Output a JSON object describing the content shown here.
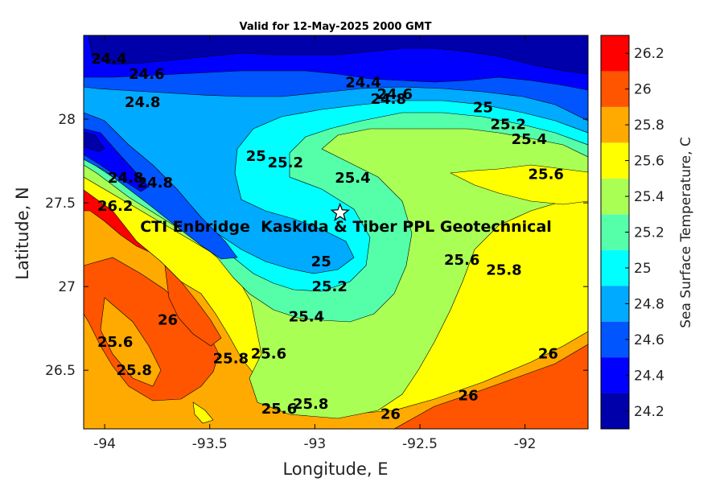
{
  "chart_data": {
    "type": "heatmap",
    "title": "Valid for 12-May-2025 2000 GMT",
    "xlabel": "Longitude, E",
    "ylabel": "Latitude, N",
    "xlim": [
      -94.1,
      -91.7
    ],
    "ylim": [
      26.15,
      28.5
    ],
    "x_ticks": [
      -94,
      -93.5,
      -93,
      -92.5,
      -92
    ],
    "y_ticks": [
      26.5,
      27,
      27.5,
      28
    ],
    "annotation": "CTI Enbridge  Kaskida & Tiber PPL Geotechnical",
    "marker": {
      "symbol": "star",
      "lon": -92.88,
      "lat": 27.44
    },
    "colorbar": {
      "label": "Sea Surface Temperature, C",
      "ticks": [
        24.2,
        24.4,
        24.6,
        24.8,
        25,
        25.2,
        25.4,
        25.6,
        25.8,
        26,
        26.2
      ],
      "levels": [
        24.2,
        24.4,
        24.6,
        24.8,
        25.0,
        25.2,
        25.4,
        25.6,
        25.8,
        26.0,
        26.2
      ],
      "colors": [
        "#0000aa",
        "#0000ff",
        "#0055ff",
        "#00aaff",
        "#00ffff",
        "#55ffaa",
        "#aaff55",
        "#ffff00",
        "#ffaa00",
        "#ff5500",
        "#ff0000"
      ]
    },
    "contour_labels": [
      {
        "text": "24.4",
        "lon": -93.98,
        "lat": 28.36
      },
      {
        "text": "24.6",
        "lon": -93.8,
        "lat": 28.27
      },
      {
        "text": "24.8",
        "lon": -93.82,
        "lat": 28.1
      },
      {
        "text": "24.4",
        "lon": -92.77,
        "lat": 28.22
      },
      {
        "text": "24.8",
        "lon": -92.65,
        "lat": 28.12
      },
      {
        "text": "24.6",
        "lon": -92.62,
        "lat": 28.15
      },
      {
        "text": "25",
        "lon": -92.2,
        "lat": 28.07
      },
      {
        "text": "25.2",
        "lon": -92.08,
        "lat": 27.97
      },
      {
        "text": "25.4",
        "lon": -91.98,
        "lat": 27.88
      },
      {
        "text": "25.6",
        "lon": -91.9,
        "lat": 27.67
      },
      {
        "text": "25",
        "lon": -93.28,
        "lat": 27.78
      },
      {
        "text": "25.2",
        "lon": -93.14,
        "lat": 27.74
      },
      {
        "text": "25.4",
        "lon": -92.82,
        "lat": 27.65
      },
      {
        "text": "24.8",
        "lon": -93.76,
        "lat": 27.62
      },
      {
        "text": "24.8",
        "lon": -93.9,
        "lat": 27.65
      },
      {
        "text": "26.2",
        "lon": -93.95,
        "lat": 27.48
      },
      {
        "text": "25",
        "lon": -92.97,
        "lat": 27.15
      },
      {
        "text": "25.2",
        "lon": -92.93,
        "lat": 27.0
      },
      {
        "text": "25.4",
        "lon": -93.04,
        "lat": 26.82
      },
      {
        "text": "25.6",
        "lon": -92.3,
        "lat": 27.16
      },
      {
        "text": "25.8",
        "lon": -92.1,
        "lat": 27.1
      },
      {
        "text": "26",
        "lon": -93.7,
        "lat": 26.8
      },
      {
        "text": "25.6",
        "lon": -93.95,
        "lat": 26.67
      },
      {
        "text": "25.8",
        "lon": -93.86,
        "lat": 26.5
      },
      {
        "text": "25.8",
        "lon": -93.4,
        "lat": 26.57
      },
      {
        "text": "25.6",
        "lon": -93.22,
        "lat": 26.6
      },
      {
        "text": "25.6",
        "lon": -93.17,
        "lat": 26.27
      },
      {
        "text": "25.8",
        "lon": -93.02,
        "lat": 26.3
      },
      {
        "text": "26",
        "lon": -92.64,
        "lat": 26.24
      },
      {
        "text": "26",
        "lon": -92.27,
        "lat": 26.35
      },
      {
        "text": "26",
        "lon": -91.89,
        "lat": 26.6
      }
    ]
  }
}
